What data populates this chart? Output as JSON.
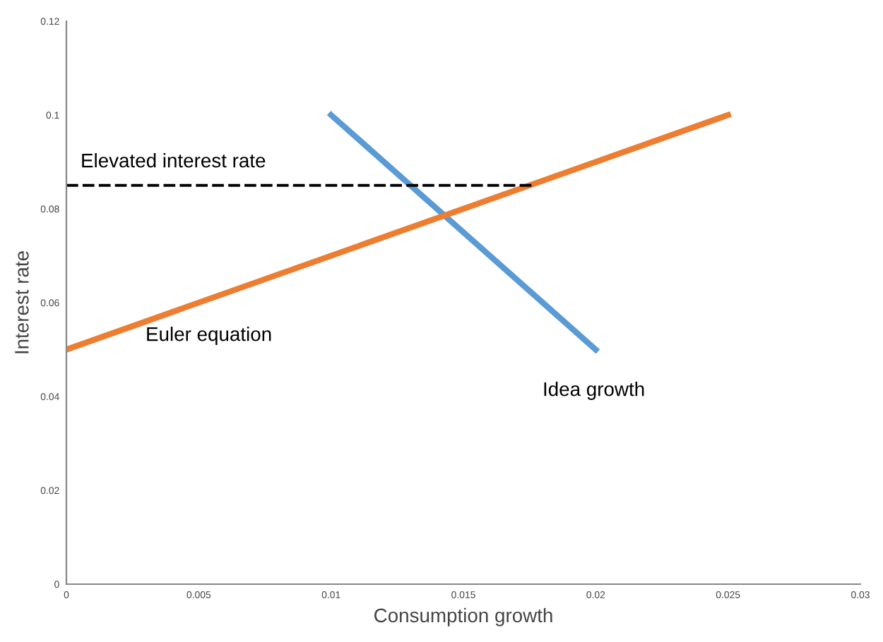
{
  "chart_data": {
    "type": "line",
    "xlabel": "Consumption growth",
    "ylabel": "Interest rate",
    "series": [
      {
        "x": [
          0.01,
          0.02
        ],
        "values": [
          0.1,
          0.05
        ],
        "color": "#5b9bd5"
      },
      {
        "x": [
          0,
          0.025
        ],
        "values": [
          0.05,
          0.1
        ],
        "color": "#ed7d31"
      },
      {
        "x": [
          0,
          0.0177
        ],
        "values": [
          0.085,
          0.085
        ],
        "color": "#000000",
        "line_style": "dashed"
      }
    ],
    "annotations": [
      "Elevated interest rate",
      "Euler equation",
      "Idea growth"
    ],
    "xlim": [
      0,
      0.03
    ],
    "ylim": [
      0,
      0.12
    ],
    "xticks": [
      0,
      0.005,
      0.01,
      0.015,
      0.02,
      0.025,
      0.03
    ],
    "yticks": [
      0,
      0.02,
      0.04,
      0.06,
      0.08,
      0.1,
      0.12
    ],
    "grid": false,
    "legend": false,
    "marker": "none"
  }
}
